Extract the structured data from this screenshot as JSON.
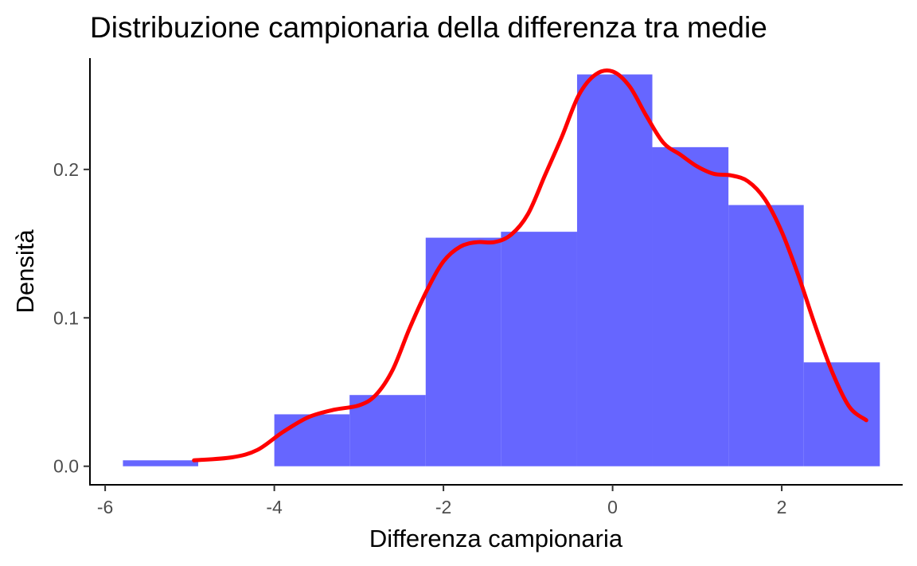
{
  "chart_data": {
    "type": "histogram",
    "title": "Distribuzione campionaria della differenza tra medie",
    "xlabel": "Differenza campionaria",
    "ylabel": "Densità",
    "xlim": [
      -6.18,
      3.43
    ],
    "ylim": [
      -0.0125,
      0.275
    ],
    "x_ticks": [
      -6,
      -4,
      -2,
      0,
      2
    ],
    "x_tick_labels": [
      "-6",
      "-4",
      "-2",
      "0",
      "2"
    ],
    "y_ticks": [
      0.0,
      0.1,
      0.2
    ],
    "y_tick_labels": [
      "0.0",
      "0.1",
      "0.2"
    ],
    "grid": false,
    "bins": [
      {
        "x0": -5.79,
        "x1": -4.9,
        "density": 0.004
      },
      {
        "x0": -4.9,
        "x1": -4.0,
        "density": 0.0
      },
      {
        "x0": -4.0,
        "x1": -3.11,
        "density": 0.035
      },
      {
        "x0": -3.11,
        "x1": -2.21,
        "density": 0.048
      },
      {
        "x0": -2.21,
        "x1": -1.32,
        "density": 0.154
      },
      {
        "x0": -1.32,
        "x1": -0.42,
        "density": 0.158
      },
      {
        "x0": -0.42,
        "x1": 0.47,
        "density": 0.264
      },
      {
        "x0": 0.47,
        "x1": 1.37,
        "density": 0.215
      },
      {
        "x0": 1.37,
        "x1": 2.26,
        "density": 0.176
      },
      {
        "x0": 2.26,
        "x1": 3.16,
        "density": 0.07
      }
    ],
    "density_curve": {
      "x": [
        -4.95,
        -4.5,
        -4.2,
        -3.9,
        -3.6,
        -3.3,
        -3.0,
        -2.8,
        -2.6,
        -2.4,
        -2.2,
        -2.0,
        -1.8,
        -1.6,
        -1.4,
        -1.2,
        -1.0,
        -0.8,
        -0.6,
        -0.4,
        -0.2,
        0.0,
        0.2,
        0.4,
        0.6,
        0.8,
        1.0,
        1.2,
        1.4,
        1.6,
        1.8,
        2.0,
        2.2,
        2.4,
        2.6,
        2.8,
        3.0
      ],
      "y": [
        0.004,
        0.006,
        0.011,
        0.023,
        0.033,
        0.038,
        0.041,
        0.048,
        0.065,
        0.093,
        0.118,
        0.138,
        0.148,
        0.151,
        0.151,
        0.156,
        0.17,
        0.196,
        0.222,
        0.25,
        0.264,
        0.266,
        0.256,
        0.236,
        0.218,
        0.21,
        0.202,
        0.197,
        0.196,
        0.192,
        0.18,
        0.158,
        0.128,
        0.094,
        0.063,
        0.04,
        0.031
      ]
    },
    "colors": {
      "bars": "#6666ff",
      "curve": "#ff0000",
      "axes": "#000000"
    }
  }
}
